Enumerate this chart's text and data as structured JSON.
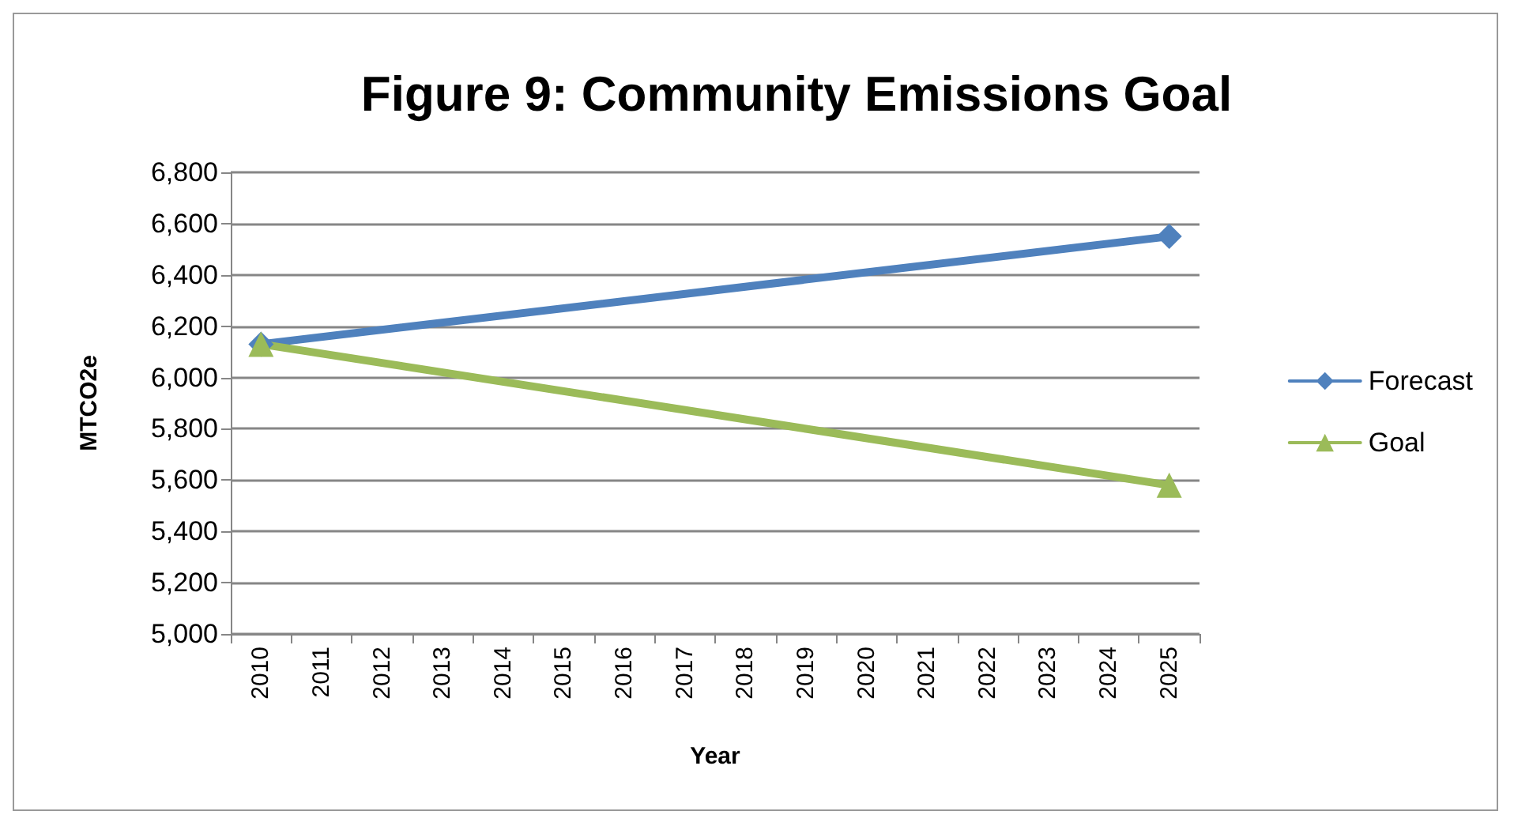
{
  "chart_data": {
    "type": "line",
    "title": "Figure 9: Community Emissions Goal",
    "xlabel": "Year",
    "ylabel": "MTCO2e",
    "categories": [
      "2010",
      "2011",
      "2012",
      "2013",
      "2014",
      "2015",
      "2016",
      "2017",
      "2018",
      "2019",
      "2020",
      "2021",
      "2022",
      "2023",
      "2024",
      "2025"
    ],
    "series": [
      {
        "name": "Forecast",
        "color": "#4f81bd",
        "marker": "diamond",
        "values": [
          6130,
          null,
          null,
          null,
          null,
          null,
          null,
          null,
          null,
          null,
          null,
          null,
          null,
          null,
          null,
          6550
        ]
      },
      {
        "name": "Goal",
        "color": "#9bbb59",
        "marker": "triangle",
        "values": [
          6130,
          null,
          null,
          null,
          null,
          null,
          null,
          null,
          null,
          null,
          null,
          null,
          null,
          null,
          null,
          5580
        ]
      }
    ],
    "ylim": [
      5000,
      6800
    ],
    "yticks": [
      {
        "value": 5000,
        "label": "5,000"
      },
      {
        "value": 5200,
        "label": "5,200"
      },
      {
        "value": 5400,
        "label": "5,400"
      },
      {
        "value": 5600,
        "label": "5,600"
      },
      {
        "value": 5800,
        "label": "5,800"
      },
      {
        "value": 6000,
        "label": "6,000"
      },
      {
        "value": 6200,
        "label": "6,200"
      },
      {
        "value": 6400,
        "label": "6,400"
      },
      {
        "value": 6600,
        "label": "6,600"
      },
      {
        "value": 6800,
        "label": "6,800"
      }
    ],
    "grid": "y",
    "legend": "right",
    "line_style": "solid"
  }
}
